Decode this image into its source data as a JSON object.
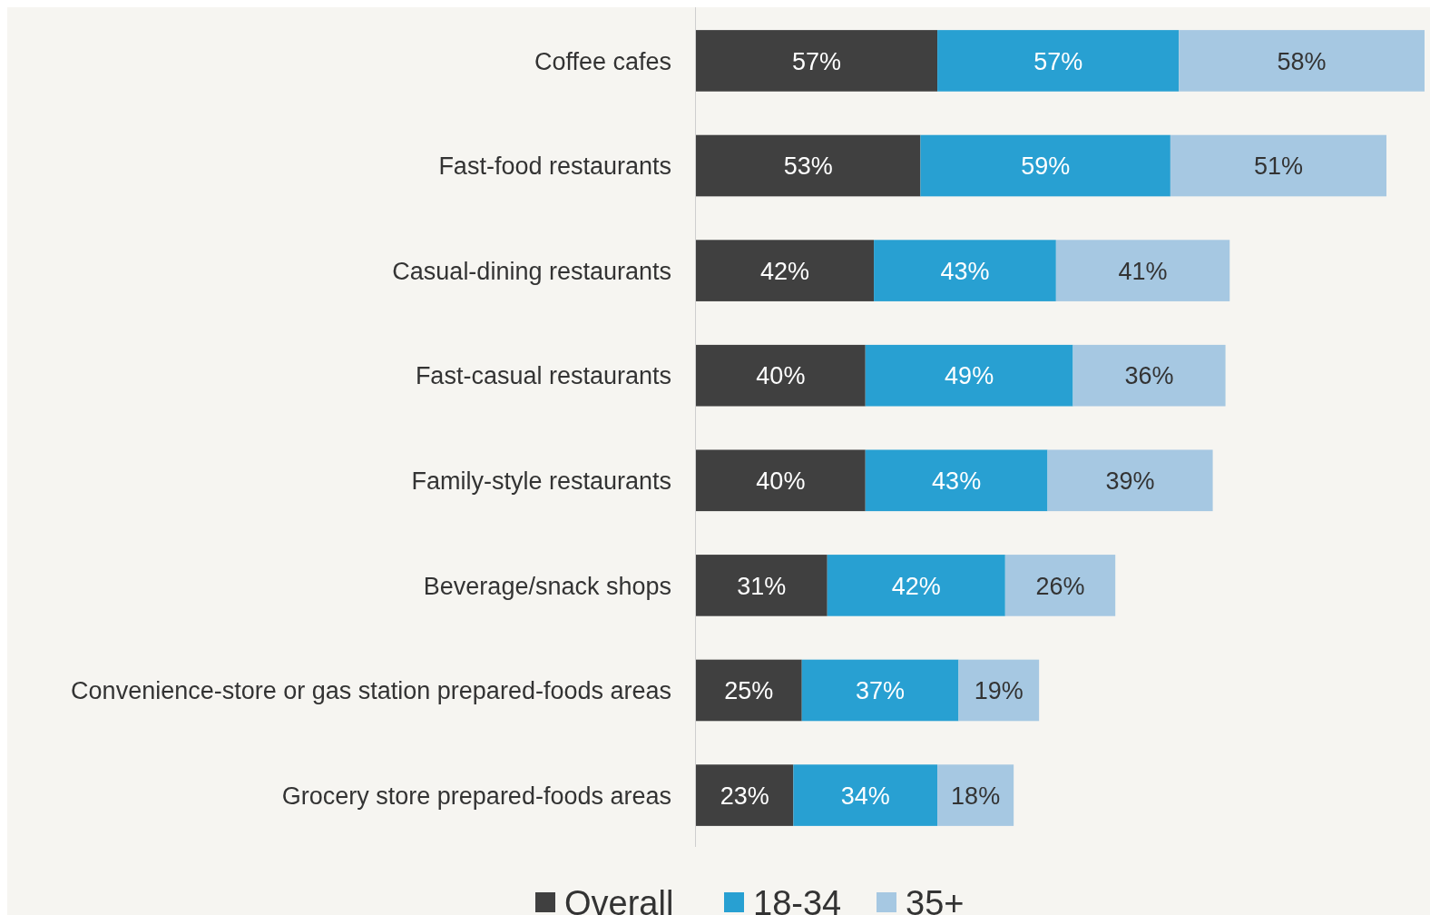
{
  "chart_data": {
    "type": "bar",
    "orientation": "horizontal",
    "stacked": true,
    "legend": "bottom",
    "categories": [
      "Coffee cafes",
      "Fast-food restaurants",
      "Casual-dining restaurants",
      "Fast-casual restaurants",
      "Family-style restaurants",
      "Beverage/snack shops",
      "Convenience-store or gas station prepared-foods areas",
      "Grocery store prepared-foods areas"
    ],
    "series": [
      {
        "name": "Overall",
        "color": "#404040",
        "values": [
          57,
          53,
          42,
          40,
          40,
          31,
          25,
          23
        ],
        "value_labels": [
          "57%",
          "53%",
          "42%",
          "40%",
          "40%",
          "31%",
          "25%",
          "23%"
        ]
      },
      {
        "name": "18-34",
        "color": "#28a0d2",
        "values": [
          57,
          59,
          43,
          49,
          43,
          42,
          37,
          34
        ],
        "value_labels": [
          "57%",
          "59%",
          "43%",
          "49%",
          "43%",
          "42%",
          "37%",
          "34%"
        ]
      },
      {
        "name": "35+",
        "color": "#a6c8e2",
        "values": [
          58,
          51,
          41,
          36,
          39,
          26,
          19,
          18
        ],
        "value_labels": [
          "58%",
          "51%",
          "41%",
          "36%",
          "39%",
          "26%",
          "19%",
          "18%"
        ]
      }
    ]
  }
}
